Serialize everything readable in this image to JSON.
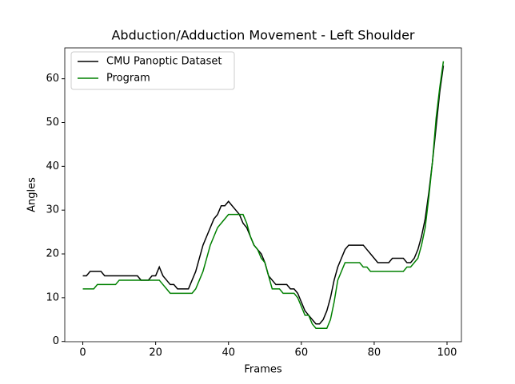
{
  "chart_data": {
    "type": "line",
    "title": "Abduction/Adduction Movement - Left Shoulder",
    "x_label": "Frames",
    "y_label": "Angles",
    "x": [
      0,
      1,
      2,
      3,
      4,
      5,
      6,
      7,
      8,
      9,
      10,
      11,
      12,
      13,
      14,
      15,
      16,
      17,
      18,
      19,
      20,
      21,
      22,
      23,
      24,
      25,
      26,
      27,
      28,
      29,
      30,
      31,
      32,
      33,
      34,
      35,
      36,
      37,
      38,
      39,
      40,
      41,
      42,
      43,
      44,
      45,
      46,
      47,
      48,
      49,
      50,
      51,
      52,
      53,
      54,
      55,
      56,
      57,
      58,
      59,
      60,
      61,
      62,
      63,
      64,
      65,
      66,
      67,
      68,
      69,
      70,
      71,
      72,
      73,
      74,
      75,
      76,
      77,
      78,
      79,
      80,
      81,
      82,
      83,
      84,
      85,
      86,
      87,
      88,
      89,
      90,
      91,
      92,
      93,
      94,
      95,
      96,
      97,
      98,
      99
    ],
    "series": [
      {
        "name": "CMU Panoptic Dataset",
        "color": "#000000",
        "values": [
          15,
          15,
          16,
          16,
          16,
          16,
          15,
          15,
          15,
          15,
          15,
          15,
          15,
          15,
          15,
          15,
          14,
          14,
          14,
          15,
          15,
          17,
          15,
          14,
          13,
          13,
          12,
          12,
          12,
          12,
          14,
          16,
          19,
          22,
          24,
          26,
          28,
          29,
          31,
          31,
          32,
          31,
          30,
          29,
          27,
          26,
          24,
          22,
          21,
          20,
          18,
          15,
          14,
          13,
          13,
          13,
          13,
          12,
          12,
          11,
          9,
          7,
          6,
          5,
          4,
          4,
          5,
          7,
          10,
          14,
          17,
          19,
          21,
          22,
          22,
          22,
          22,
          22,
          21,
          20,
          19,
          18,
          18,
          18,
          18,
          19,
          19,
          19,
          19,
          18,
          18,
          19,
          21,
          24,
          28,
          34,
          41,
          49,
          57,
          63
        ]
      },
      {
        "name": "Program",
        "color": "#008000",
        "values": [
          12,
          12,
          12,
          12,
          13,
          13,
          13,
          13,
          13,
          13,
          14,
          14,
          14,
          14,
          14,
          14,
          14,
          14,
          14,
          14,
          14,
          14,
          13,
          12,
          11,
          11,
          11,
          11,
          11,
          11,
          11,
          12,
          14,
          16,
          19,
          22,
          24,
          26,
          27,
          28,
          29,
          29,
          29,
          29,
          29,
          27,
          24,
          22,
          21,
          19,
          18,
          15,
          12,
          12,
          12,
          11,
          11,
          11,
          11,
          10,
          8,
          6,
          6,
          4,
          3,
          3,
          3,
          3,
          5,
          9,
          14,
          16,
          18,
          18,
          18,
          18,
          18,
          17,
          17,
          16,
          16,
          16,
          16,
          16,
          16,
          16,
          16,
          16,
          16,
          17,
          17,
          18,
          19,
          22,
          26,
          33,
          41,
          51,
          58,
          64
        ]
      }
    ],
    "xlim": [
      -4.95,
      103.95
    ],
    "ylim": [
      -0.05,
      67.05
    ],
    "xticks": [
      0,
      20,
      40,
      60,
      80,
      100
    ],
    "yticks": [
      0,
      10,
      20,
      30,
      40,
      50,
      60
    ],
    "legend": "upper left"
  }
}
